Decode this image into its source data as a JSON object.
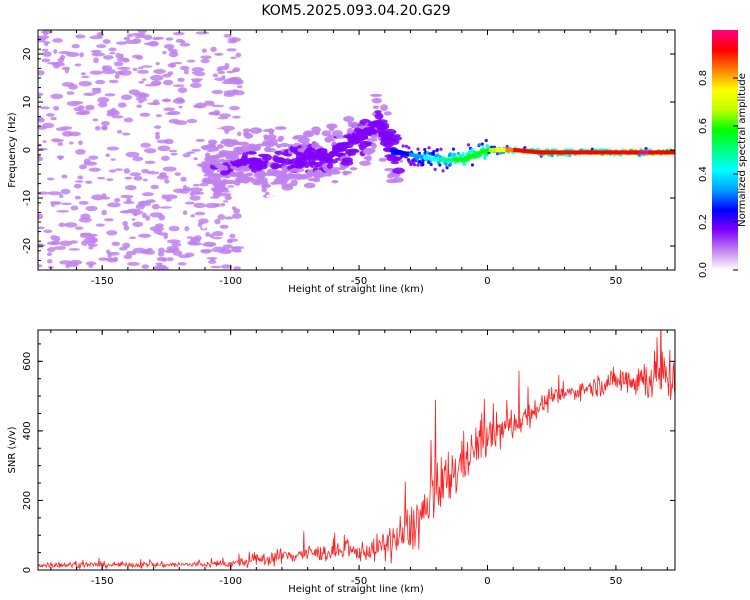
{
  "title": "KOM5.2025.093.04.20.G29",
  "chart_data": [
    {
      "type": "heatmap",
      "xlabel": "Height of straight line (km)",
      "ylabel": "Frequency (Hz)",
      "xlim": [
        -175,
        73
      ],
      "ylim": [
        -25,
        25
      ],
      "xticks": [
        -150,
        -100,
        -50,
        0,
        50
      ],
      "yticks": [
        -20,
        -10,
        0,
        10,
        20
      ],
      "colorbar": {
        "label": "Normalized spectral amplitude",
        "range": [
          0,
          1
        ],
        "ticks": [
          0.0,
          0.2,
          0.4,
          0.6,
          0.8
        ],
        "colors": [
          "#ffffff",
          "#c080f0",
          "#7f00ff",
          "#0000ff",
          "#00a0ff",
          "#00ffff",
          "#00ff80",
          "#00ff00",
          "#c0ff00",
          "#ffff00",
          "#ff8000",
          "#ff0000",
          "#ff0080"
        ]
      },
      "ridge": {
        "x": [
          -175,
          -110,
          -100,
          -80,
          -60,
          -50,
          -42,
          -38,
          -30,
          -20,
          -10,
          0,
          10,
          20,
          40,
          60,
          73
        ],
        "freq": [
          0,
          -4,
          -3,
          -2,
          -1,
          2,
          6,
          0,
          -1,
          -2,
          -2,
          0,
          0,
          -0.5,
          -0.5,
          -0.5,
          -0.5
        ],
        "amplitude": [
          0.02,
          0.12,
          0.15,
          0.16,
          0.18,
          0.18,
          0.17,
          0.22,
          0.3,
          0.45,
          0.6,
          0.62,
          0.88,
          0.9,
          0.93,
          0.96,
          0.95
        ]
      },
      "grid": false
    },
    {
      "type": "line",
      "xlabel": "Height of straight line (km)",
      "ylabel": "SNR (v/v)",
      "xlim": [
        -175,
        73
      ],
      "ylim": [
        0,
        690
      ],
      "xticks": [
        -150,
        -100,
        -50,
        0,
        50
      ],
      "yticks": [
        0,
        200,
        400,
        600
      ],
      "color": "#ff2020",
      "grid": false,
      "series": [
        {
          "x": [
            -175,
            -150,
            -125,
            -110,
            -100,
            -95,
            -90,
            -80,
            -70,
            -60,
            -50,
            -45,
            -40,
            -35,
            -30,
            -25,
            -20,
            -15,
            -10,
            -5,
            0,
            5,
            10,
            15,
            20,
            25,
            30,
            35,
            40,
            45,
            50,
            55,
            60,
            65,
            70,
            73
          ],
          "values": [
            15,
            15,
            15,
            16,
            18,
            22,
            28,
            40,
            48,
            50,
            52,
            58,
            70,
            90,
            120,
            160,
            210,
            260,
            310,
            350,
            380,
            400,
            420,
            445,
            470,
            490,
            505,
            515,
            525,
            535,
            545,
            550,
            550,
            555,
            560,
            560
          ],
          "noise": [
            8,
            8,
            8,
            8,
            10,
            14,
            18,
            22,
            22,
            22,
            25,
            30,
            40,
            60,
            70,
            80,
            90,
            80,
            70,
            60,
            50,
            50,
            45,
            40,
            30,
            25,
            22,
            22,
            25,
            30,
            35,
            45,
            60,
            70,
            80,
            80
          ]
        }
      ]
    }
  ]
}
